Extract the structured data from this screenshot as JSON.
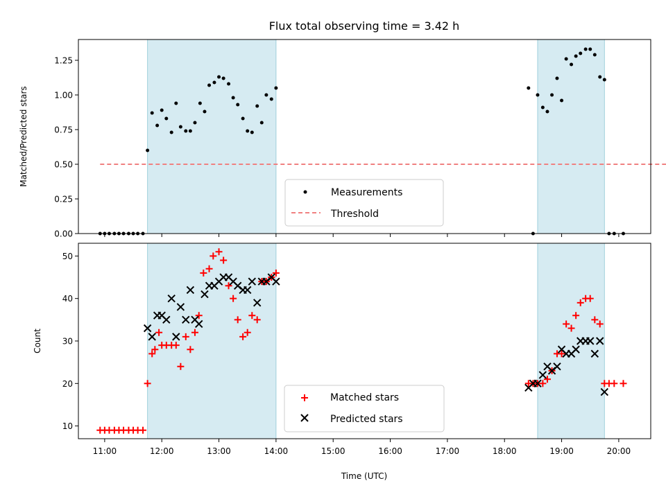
{
  "chart_data": [
    {
      "type": "scatter",
      "title": "Flux total observing time = 3.42 h",
      "ylabel": "Matched/Predicted stars",
      "xlabel": "",
      "xlim": [
        10.54,
        20.56
      ],
      "ylim": [
        0.0,
        1.4
      ],
      "yticks": [
        0.0,
        0.25,
        0.5,
        0.75,
        1.0,
        1.25
      ],
      "ytick_labels": [
        "0.00",
        "0.25",
        "0.50",
        "0.75",
        "1.00",
        "1.25"
      ],
      "shaded_intervals": [
        [
          11.75,
          14.0
        ],
        [
          18.58,
          19.75
        ]
      ],
      "legend": {
        "position": "lower-center",
        "entries": [
          "Measurements",
          "Threshold"
        ]
      },
      "threshold": {
        "name": "Threshold",
        "value": 0.5,
        "x_range": [
          10.92,
          21.08
        ],
        "color": "#f08080",
        "style": "dashed"
      },
      "series": [
        {
          "name": "Measurements",
          "color": "#000000",
          "x": [
            10.92,
            11.0,
            11.08,
            11.17,
            11.25,
            11.33,
            11.42,
            11.5,
            11.58,
            11.67,
            11.75,
            11.83,
            11.92,
            12.0,
            12.08,
            12.17,
            12.25,
            12.33,
            12.42,
            12.5,
            12.58,
            12.67,
            12.75,
            12.83,
            12.92,
            13.0,
            13.08,
            13.17,
            13.25,
            13.33,
            13.42,
            13.5,
            13.58,
            13.67,
            13.75,
            13.83,
            13.92,
            14.0,
            18.42,
            18.5,
            18.58,
            18.67,
            18.75,
            18.83,
            18.92,
            19.0,
            19.08,
            19.17,
            19.25,
            19.33,
            19.42,
            19.5,
            19.58,
            19.67,
            19.75,
            19.83,
            19.92,
            20.08
          ],
          "y": [
            0.0,
            0.0,
            0.0,
            0.0,
            0.0,
            0.0,
            0.0,
            0.0,
            0.0,
            0.0,
            0.6,
            0.87,
            0.78,
            0.89,
            0.83,
            0.73,
            0.94,
            0.77,
            0.74,
            0.74,
            0.8,
            0.94,
            0.88,
            1.07,
            1.09,
            1.13,
            1.12,
            1.08,
            0.98,
            0.93,
            0.83,
            0.74,
            0.73,
            0.92,
            0.8,
            1.0,
            0.97,
            1.05,
            1.05,
            0.0,
            1.0,
            0.91,
            0.88,
            1.0,
            1.12,
            0.96,
            1.26,
            1.22,
            1.28,
            1.3,
            1.33,
            1.33,
            1.29,
            1.13,
            1.11,
            0.0,
            0.0,
            0.0
          ]
        }
      ]
    },
    {
      "type": "scatter",
      "title": "",
      "ylabel": "Count",
      "xlabel": "Time (UTC)",
      "xlim": [
        10.54,
        20.56
      ],
      "ylim": [
        7.0,
        53.0
      ],
      "xticks": [
        11,
        12,
        13,
        14,
        15,
        16,
        17,
        18,
        19,
        20
      ],
      "xtick_labels": [
        "11:00",
        "12:00",
        "13:00",
        "14:00",
        "15:00",
        "16:00",
        "17:00",
        "18:00",
        "19:00",
        "20:00"
      ],
      "yticks": [
        10,
        20,
        30,
        40,
        50
      ],
      "ytick_labels": [
        "10",
        "20",
        "30",
        "40",
        "50"
      ],
      "shaded_intervals": [
        [
          11.75,
          14.0
        ],
        [
          18.58,
          19.75
        ]
      ],
      "legend": {
        "position": "lower-center",
        "entries": [
          "Matched stars",
          "Predicted stars"
        ]
      },
      "series": [
        {
          "name": "Matched stars",
          "marker": "plus",
          "color": "#ff0000",
          "x": [
            10.92,
            11.0,
            11.08,
            11.17,
            11.25,
            11.33,
            11.42,
            11.5,
            11.58,
            11.67,
            11.75,
            11.83,
            11.88,
            11.95,
            12.0,
            12.08,
            12.17,
            12.25,
            12.33,
            12.42,
            12.5,
            12.58,
            12.65,
            12.73,
            12.83,
            12.9,
            13.0,
            13.08,
            13.17,
            13.25,
            13.33,
            13.42,
            13.5,
            13.58,
            13.67,
            13.75,
            13.83,
            13.92,
            14.0,
            18.42,
            18.5,
            18.58,
            18.67,
            18.75,
            18.83,
            18.92,
            19.0,
            19.08,
            19.17,
            19.25,
            19.33,
            19.42,
            19.5,
            19.58,
            19.67,
            19.75,
            19.83,
            19.92,
            20.08
          ],
          "y": [
            9,
            9,
            9,
            9,
            9,
            9,
            9,
            9,
            9,
            9,
            20,
            27,
            28,
            32,
            29,
            29,
            29,
            29,
            24,
            31,
            28,
            32,
            36,
            46,
            47,
            50,
            51,
            49,
            43,
            40,
            35,
            31,
            32,
            36,
            35,
            44,
            44,
            45,
            46,
            20,
            20,
            20,
            20,
            21,
            23,
            27,
            27,
            34,
            33,
            36,
            39,
            40,
            40,
            35,
            34,
            20,
            20,
            20,
            20
          ]
        },
        {
          "name": "Predicted stars",
          "marker": "x",
          "color": "#000000",
          "x": [
            11.75,
            11.83,
            11.92,
            12.0,
            12.08,
            12.17,
            12.25,
            12.33,
            12.42,
            12.5,
            12.58,
            12.65,
            12.75,
            12.83,
            12.92,
            13.0,
            13.08,
            13.17,
            13.25,
            13.33,
            13.42,
            13.5,
            13.58,
            13.67,
            13.75,
            13.83,
            13.92,
            14.0,
            18.42,
            18.5,
            18.58,
            18.67,
            18.75,
            18.83,
            18.92,
            19.0,
            19.08,
            19.17,
            19.25,
            19.33,
            19.42,
            19.5,
            19.58,
            19.67,
            19.75
          ],
          "y": [
            33,
            31,
            36,
            36,
            35,
            40,
            31,
            38,
            35,
            42,
            35,
            34,
            41,
            43,
            43,
            44,
            45,
            45,
            44,
            43,
            42,
            42,
            44,
            39,
            44,
            44,
            45,
            44,
            19,
            20,
            20,
            22,
            24,
            23,
            24,
            28,
            27,
            27,
            28,
            30,
            30,
            30,
            27,
            30,
            18
          ]
        }
      ]
    }
  ]
}
